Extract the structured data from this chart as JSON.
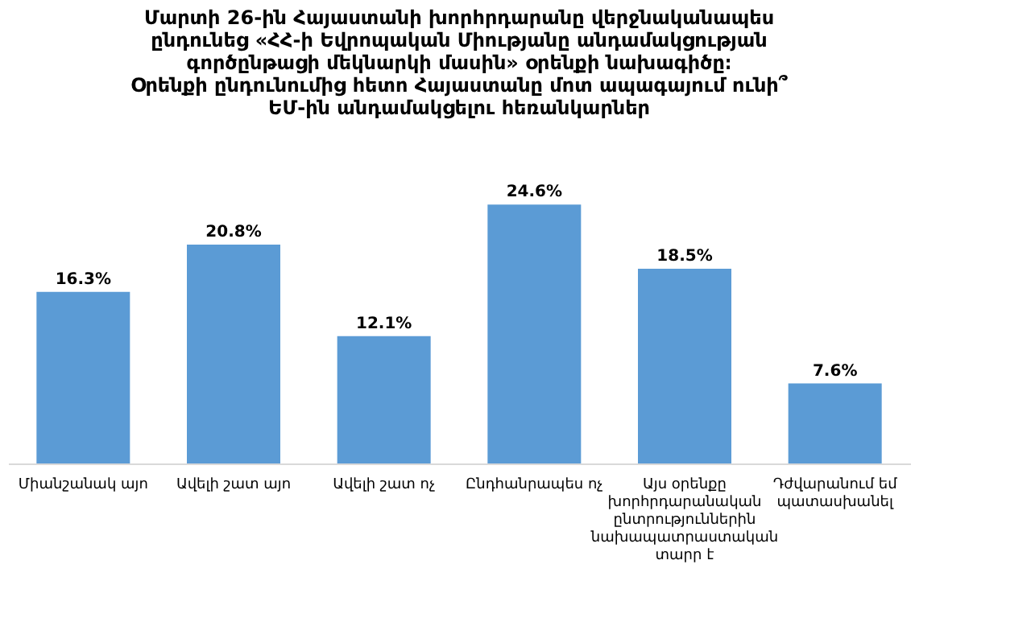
{
  "chart_data": {
    "type": "bar",
    "title": "Մարտի 26-ին Հայաստանի խորհրդարանը վերջնականապես\nընդունեց «ՀՀ-ի Եվրոպական Միությանը անդամակցության\nգործընթացի մեկնարկի մասին» օրենքի նախագիծը։\nՕրենքի ընդունումից հետո Հայաստանը մոտ ապագայում ունի՞\nԵՄ-ին անդամակցելու հեռանկարներ",
    "categories": [
      "Միանշանակ այո",
      "Ավելի շատ այո",
      "Ավելի շատ ոչ",
      "Ընդհանրապես ոչ",
      "Այս օրենքը խորհրդարանական ընտրություններին նախապատրաստական տարր է",
      "Դժվարանում եմ պատասխանել"
    ],
    "values": [
      16.3,
      20.8,
      12.1,
      24.6,
      18.5,
      7.6
    ],
    "value_labels": [
      "16.3%",
      "20.8%",
      "12.1%",
      "24.6%",
      "18.5%",
      "7.6%"
    ],
    "color": "#5b9bd5",
    "tick_labels": "x"
  }
}
